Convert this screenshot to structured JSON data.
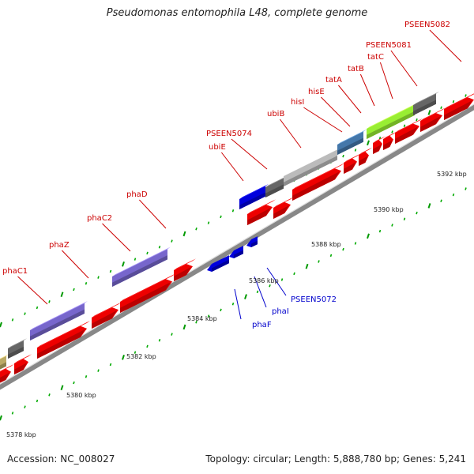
{
  "title": "Pseudomonas entomophila L48, complete genome",
  "accession": "Accession: NC_008027",
  "topology": "Topology: circular; Length: 5,888,780 bp; Genes: 5,241",
  "colors": {
    "backbone": "#888888",
    "forward_label": "#cc0000",
    "reverse_label": "#0000cc",
    "cds": "#ee0000",
    "tick_major": "#009900",
    "tick_minor": "#00aa00",
    "scale_text": "#222222"
  },
  "scale_labels": [
    "5378 kbp",
    "5380 kbp",
    "5382 kbp",
    "5384 kbp",
    "5386 kbp",
    "5388 kbp",
    "5390 kbp",
    "5392 kbp"
  ],
  "forward_genes": [
    {
      "label": "phaC1",
      "color": "#7766cc"
    },
    {
      "label": "phaZ",
      "color": "#ee0000"
    },
    {
      "label": "phaC2",
      "color": "#7766cc"
    },
    {
      "label": "phaD",
      "color": "#ee0000"
    },
    {
      "label": "ubiE",
      "color": "#0000dd"
    },
    {
      "label": "PSEEN5074",
      "color": "#666666"
    },
    {
      "label": "ubiB",
      "color": "#bbbbbb"
    },
    {
      "label": "hisI",
      "color": "#4477aa"
    },
    {
      "label": "hisE",
      "color": "#ee0000"
    },
    {
      "label": "tatA",
      "color": "#ee0000"
    },
    {
      "label": "tatB",
      "color": "#ee0000"
    },
    {
      "label": "tatC",
      "color": "#99ee33"
    },
    {
      "label": "PSEEN5081",
      "color": "#666666"
    },
    {
      "label": "PSEEN5082",
      "color": "#ee0000"
    }
  ],
  "reverse_genes": [
    {
      "label": "phaF",
      "color": "#0000dd"
    },
    {
      "label": "phaI",
      "color": "#0000dd"
    },
    {
      "label": "PSEEN5072",
      "color": "#0000dd"
    }
  ]
}
